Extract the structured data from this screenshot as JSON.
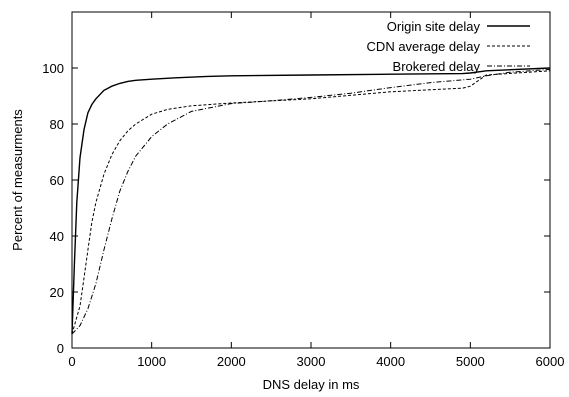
{
  "chart_data": {
    "type": "line",
    "xlabel": "DNS delay in ms",
    "ylabel": "Percent of measurments",
    "xlim": [
      0,
      6000
    ],
    "ylim": [
      0,
      120
    ],
    "xticks": [
      0,
      1000,
      2000,
      3000,
      4000,
      5000,
      6000
    ],
    "yticks": [
      0,
      20,
      40,
      60,
      80,
      100
    ],
    "grid": false,
    "legend_position": "top-right",
    "series": [
      {
        "name": "Origin site delay",
        "style": "solid",
        "x": [
          0,
          30,
          60,
          100,
          150,
          200,
          250,
          300,
          400,
          500,
          600,
          700,
          800,
          1000,
          1300,
          1700,
          2000,
          3000,
          4000,
          4900,
          5000,
          5200,
          6000
        ],
        "y": [
          5,
          30,
          52,
          68,
          78,
          84,
          87,
          89,
          92,
          93.5,
          94.5,
          95.2,
          95.6,
          96,
          96.5,
          97,
          97.2,
          97.5,
          97.8,
          98,
          98.2,
          99,
          100
        ]
      },
      {
        "name": "CDN average delay",
        "style": "dashed",
        "x": [
          0,
          100,
          150,
          200,
          250,
          300,
          400,
          500,
          600,
          700,
          800,
          1000,
          1200,
          1500,
          2000,
          3000,
          4000,
          4900,
          5000,
          5100,
          5200,
          6000
        ],
        "y": [
          5,
          15,
          25,
          35,
          45,
          52,
          62,
          69,
          74,
          77.5,
          80,
          83.5,
          85.2,
          86.5,
          87.5,
          89,
          91.5,
          92.8,
          93.5,
          95.5,
          97.5,
          99
        ]
      },
      {
        "name": "Brokered delay",
        "style": "dashdot",
        "x": [
          0,
          100,
          200,
          300,
          400,
          500,
          600,
          700,
          800,
          1000,
          1200,
          1500,
          2000,
          2500,
          3000,
          3500,
          4000,
          4500,
          5000,
          5200,
          5500,
          6000
        ],
        "y": [
          5,
          8,
          14,
          23,
          35,
          46,
          56,
          63,
          68.5,
          75.5,
          80,
          84.5,
          87.3,
          88.3,
          89.5,
          91,
          93,
          94.8,
          96,
          97.2,
          98.5,
          99.5
        ]
      }
    ]
  }
}
